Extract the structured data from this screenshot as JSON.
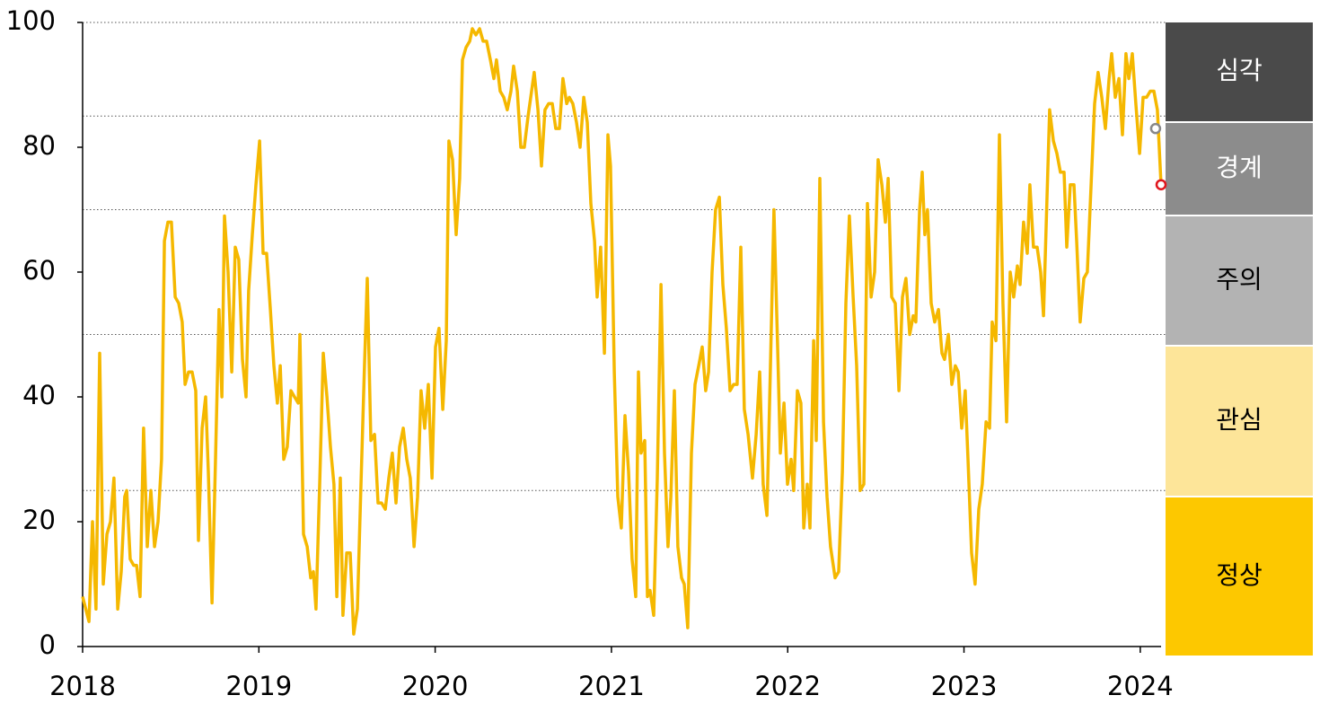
{
  "chart_data": {
    "type": "line",
    "x": [
      2018.0,
      2018.036,
      2018.056,
      2018.076,
      2018.097,
      2018.117,
      2018.138,
      2018.158,
      2018.178,
      2018.199,
      2018.219,
      2018.239,
      2018.25,
      2018.27,
      2018.29,
      2018.306,
      2018.326,
      2018.346,
      2018.367,
      2018.387,
      2018.408,
      2018.428,
      2018.448,
      2018.464,
      2018.484,
      2018.504,
      2018.525,
      2018.545,
      2018.565,
      2018.581,
      2018.601,
      2018.621,
      2018.642,
      2018.657,
      2018.678,
      2018.698,
      2018.713,
      2018.734,
      2018.754,
      2018.774,
      2018.79,
      2018.805,
      2018.825,
      2018.846,
      2018.866,
      2018.886,
      2018.907,
      2018.927,
      2018.942,
      2018.963,
      2018.983,
      2019.004,
      2019.024,
      2019.044,
      2019.065,
      2019.085,
      2019.105,
      2019.121,
      2019.141,
      2019.161,
      2019.182,
      2019.202,
      2019.223,
      2019.233,
      2019.253,
      2019.274,
      2019.294,
      2019.309,
      2019.324,
      2019.345,
      2019.365,
      2019.386,
      2019.406,
      2019.426,
      2019.442,
      2019.462,
      2019.477,
      2019.498,
      2019.518,
      2019.538,
      2019.559,
      2019.579,
      2019.599,
      2019.615,
      2019.635,
      2019.656,
      2019.676,
      2019.696,
      2019.717,
      2019.737,
      2019.757,
      2019.778,
      2019.798,
      2019.819,
      2019.839,
      2019.859,
      2019.88,
      2019.9,
      2019.92,
      2019.941,
      2019.961,
      2019.982,
      2020.002,
      2020.022,
      2020.043,
      2020.063,
      2020.078,
      2020.099,
      2020.119,
      2020.139,
      2020.155,
      2020.175,
      2020.196,
      2020.211,
      2020.231,
      2020.252,
      2020.272,
      2020.292,
      2020.313,
      2020.333,
      2020.348,
      2020.369,
      2020.389,
      2020.409,
      2020.43,
      2020.445,
      2020.466,
      2020.486,
      2020.506,
      2020.527,
      2020.547,
      2020.562,
      2020.583,
      2020.603,
      2020.623,
      2020.644,
      2020.664,
      2020.684,
      2020.705,
      2020.725,
      2020.746,
      2020.761,
      2020.781,
      2020.802,
      2020.822,
      2020.843,
      2020.863,
      2020.883,
      2020.904,
      2020.919,
      2020.939,
      2020.96,
      2020.98,
      2020.995,
      2021.016,
      2021.036,
      2021.056,
      2021.077,
      2021.097,
      2021.117,
      2021.138,
      2021.153,
      2021.168,
      2021.189,
      2021.204,
      2021.219,
      2021.24,
      2021.26,
      2021.281,
      2021.301,
      2021.321,
      2021.337,
      2021.357,
      2021.377,
      2021.398,
      2021.413,
      2021.433,
      2021.454,
      2021.474,
      2021.495,
      2021.515,
      2021.535,
      2021.551,
      2021.571,
      2021.591,
      2021.612,
      2021.632,
      2021.652,
      2021.673,
      2021.693,
      2021.713,
      2021.734,
      2021.754,
      2021.775,
      2021.8,
      2021.821,
      2021.841,
      2021.861,
      2021.882,
      2021.902,
      2021.922,
      2021.943,
      2021.958,
      2021.979,
      2021.999,
      2022.019,
      2022.034,
      2022.055,
      2022.075,
      2022.091,
      2022.111,
      2022.126,
      2022.147,
      2022.162,
      2022.182,
      2022.203,
      2022.223,
      2022.243,
      2022.269,
      2022.289,
      2022.31,
      2022.33,
      2022.35,
      2022.371,
      2022.391,
      2022.411,
      2022.432,
      2022.452,
      2022.473,
      2022.493,
      2022.513,
      2022.534,
      2022.554,
      2022.57,
      2022.59,
      2022.61,
      2022.631,
      2022.651,
      2022.671,
      2022.692,
      2022.712,
      2022.727,
      2022.748,
      2022.763,
      2022.778,
      2022.793,
      2022.814,
      2022.834,
      2022.855,
      2022.875,
      2022.89,
      2022.911,
      2022.931,
      2022.951,
      2022.967,
      2022.987,
      2023.007,
      2023.023,
      2023.043,
      2023.063,
      2023.084,
      2023.104,
      2023.125,
      2023.145,
      2023.16,
      2023.181,
      2023.201,
      2023.221,
      2023.242,
      2023.262,
      2023.282,
      2023.303,
      2023.318,
      2023.338,
      2023.359,
      2023.374,
      2023.394,
      2023.415,
      2023.435,
      2023.451,
      2023.471,
      2023.486,
      2023.507,
      2023.527,
      2023.547,
      2023.568,
      2023.583,
      2023.603,
      2023.624,
      2023.639,
      2023.659,
      2023.68,
      2023.7,
      2023.721,
      2023.741,
      2023.761,
      2023.782,
      2023.802,
      2023.823,
      2023.838,
      2023.858,
      2023.879,
      2023.899,
      2023.919,
      2023.935,
      2023.955,
      2023.975,
      2023.996,
      2024.016,
      2024.036,
      2024.057,
      2024.077,
      2024.097,
      2024.118
    ],
    "values": [
      8,
      4,
      20,
      6,
      47,
      10,
      18,
      20,
      27,
      6,
      12,
      24,
      25,
      14,
      13,
      13,
      8,
      35,
      16,
      25,
      16,
      20,
      30,
      65,
      68,
      68,
      56,
      55,
      52,
      42,
      44,
      44,
      41,
      17,
      35,
      40,
      28,
      7,
      30,
      54,
      40,
      69,
      60,
      44,
      64,
      62,
      46,
      40,
      57,
      66,
      74,
      81,
      63,
      63,
      54,
      45,
      39,
      45,
      30,
      32,
      41,
      40,
      39,
      50,
      18,
      16,
      11,
      12,
      6,
      26,
      47,
      40,
      32,
      26,
      8,
      27,
      5,
      15,
      15,
      2,
      6,
      26,
      45,
      59,
      33,
      34,
      23,
      23,
      22,
      27,
      31,
      23,
      32,
      35,
      30,
      27,
      16,
      24,
      41,
      35,
      42,
      27,
      48,
      51,
      38,
      49,
      81,
      78,
      66,
      75,
      94,
      96,
      97,
      99,
      98,
      99,
      97,
      97,
      94,
      91,
      94,
      89,
      88,
      86,
      89,
      93,
      89,
      80,
      80,
      85,
      89,
      92,
      86,
      77,
      86,
      87,
      87,
      83,
      83,
      91,
      87,
      88,
      87,
      84,
      80,
      88,
      84,
      71,
      65,
      56,
      64,
      47,
      82,
      77,
      44,
      24,
      19,
      37,
      28,
      14,
      8,
      44,
      31,
      33,
      8,
      9,
      5,
      27,
      58,
      31,
      16,
      24,
      41,
      16,
      11,
      10,
      3,
      31,
      42,
      45,
      48,
      41,
      44,
      60,
      70,
      72,
      58,
      51,
      41,
      42,
      42,
      64,
      38,
      34,
      27,
      34,
      44,
      26,
      21,
      45,
      70,
      48,
      31,
      39,
      26,
      30,
      25,
      41,
      39,
      19,
      26,
      19,
      49,
      33,
      75,
      36,
      24,
      16,
      11,
      12,
      28,
      55,
      69,
      56,
      45,
      25,
      26,
      71,
      56,
      60,
      78,
      74,
      68,
      75,
      56,
      55,
      41,
      56,
      59,
      50,
      53,
      52,
      70,
      76,
      66,
      70,
      55,
      52,
      54,
      47,
      46,
      50,
      42,
      45,
      44,
      35,
      41,
      30,
      15,
      10,
      22,
      26,
      36,
      35,
      52,
      49,
      82,
      55,
      36,
      60,
      56,
      61,
      58,
      68,
      63,
      74,
      64,
      64,
      60,
      53,
      72,
      86,
      81,
      79,
      76,
      76,
      64,
      74,
      74,
      65,
      52,
      59,
      60,
      74,
      87,
      92,
      88,
      83,
      91,
      95,
      88,
      91,
      82,
      95,
      91,
      95,
      87,
      79,
      88,
      88,
      89,
      89,
      86,
      74
    ],
    "color": "#f5b800",
    "highlights": [
      {
        "x": 2024.087,
        "y": 83,
        "color": "#888888"
      },
      {
        "x": 2024.118,
        "y": 74,
        "color": "#e0161d"
      }
    ],
    "thresholds": [
      25,
      50,
      70,
      85,
      100
    ],
    "zones": [
      {
        "label": "심각",
        "color": "#4a4a4a"
      },
      {
        "label": "경계",
        "color": "#8c8c8c"
      },
      {
        "label": "주의",
        "color": "#b3b3b3"
      },
      {
        "label": "관심",
        "color": "#fde599"
      },
      {
        "label": "정상",
        "color": "#fdc800"
      }
    ],
    "xlim": [
      2018,
      2024.118
    ],
    "xticks": [
      2018,
      2019,
      2020,
      2021,
      2022,
      2023,
      2024
    ],
    "ylim": [
      0,
      100
    ],
    "yticks": [
      0,
      20,
      40,
      60,
      80,
      100
    ]
  }
}
